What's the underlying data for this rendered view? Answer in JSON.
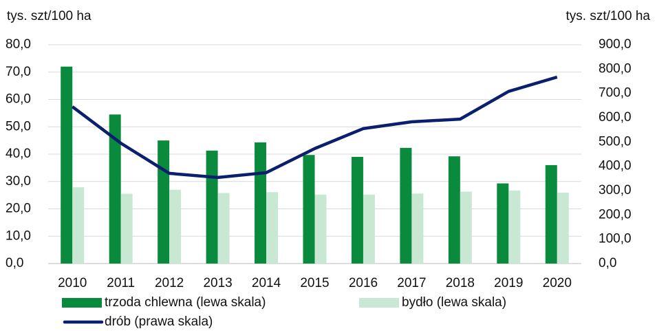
{
  "chart_data": {
    "type": "bar_line",
    "y_label": "tys. szt/100 ha",
    "y2_label": "tys. szt/100 ha",
    "categories": [
      "2010",
      "2011",
      "2012",
      "2013",
      "2014",
      "2015",
      "2016",
      "2017",
      "2018",
      "2019",
      "2020"
    ],
    "series": [
      {
        "name": "trzoda chlewna (lewa skala)",
        "color": "#0a8a3c",
        "type": "bar",
        "values": [
          72.0,
          54.5,
          45.0,
          41.3,
          44.3,
          39.7,
          39.0,
          42.3,
          39.2,
          29.3,
          36.0
        ]
      },
      {
        "name": "bydło (lewa skala)",
        "color": "#c9e8d4",
        "type": "bar",
        "values": [
          27.9,
          25.5,
          27.0,
          25.8,
          26.1,
          25.2,
          25.2,
          25.6,
          26.3,
          26.7,
          25.9
        ]
      },
      {
        "name": "drób (prawa skala)",
        "color": "#0a1f6e",
        "type": "line",
        "axis": "y2",
        "values": [
          645,
          495,
          371,
          354,
          374,
          473,
          555,
          583,
          594,
          708,
          767
        ]
      }
    ],
    "ylim": [
      0,
      80
    ],
    "yticks": [
      {
        "value": 0,
        "label": "0,0"
      },
      {
        "value": 10,
        "label": "10,0"
      },
      {
        "value": 20,
        "label": "20,0"
      },
      {
        "value": 30,
        "label": "30,0"
      },
      {
        "value": 40,
        "label": "40,0"
      },
      {
        "value": 50,
        "label": "50,0"
      },
      {
        "value": 60,
        "label": "60,0"
      },
      {
        "value": 70,
        "label": "70,0"
      },
      {
        "value": 80,
        "label": "80,0"
      }
    ],
    "y2lim": [
      0,
      900
    ],
    "y2ticks": [
      {
        "value": 0,
        "label": "0,0"
      },
      {
        "value": 100,
        "label": "100,0"
      },
      {
        "value": 200,
        "label": "200,0"
      },
      {
        "value": 300,
        "label": "300,0"
      },
      {
        "value": 400,
        "label": "400,0"
      },
      {
        "value": 500,
        "label": "500,0"
      },
      {
        "value": 600,
        "label": "600,0"
      },
      {
        "value": 700,
        "label": "700,0"
      },
      {
        "value": 800,
        "label": "800,0"
      },
      {
        "value": 900,
        "label": "900,0"
      }
    ],
    "grid": true
  }
}
